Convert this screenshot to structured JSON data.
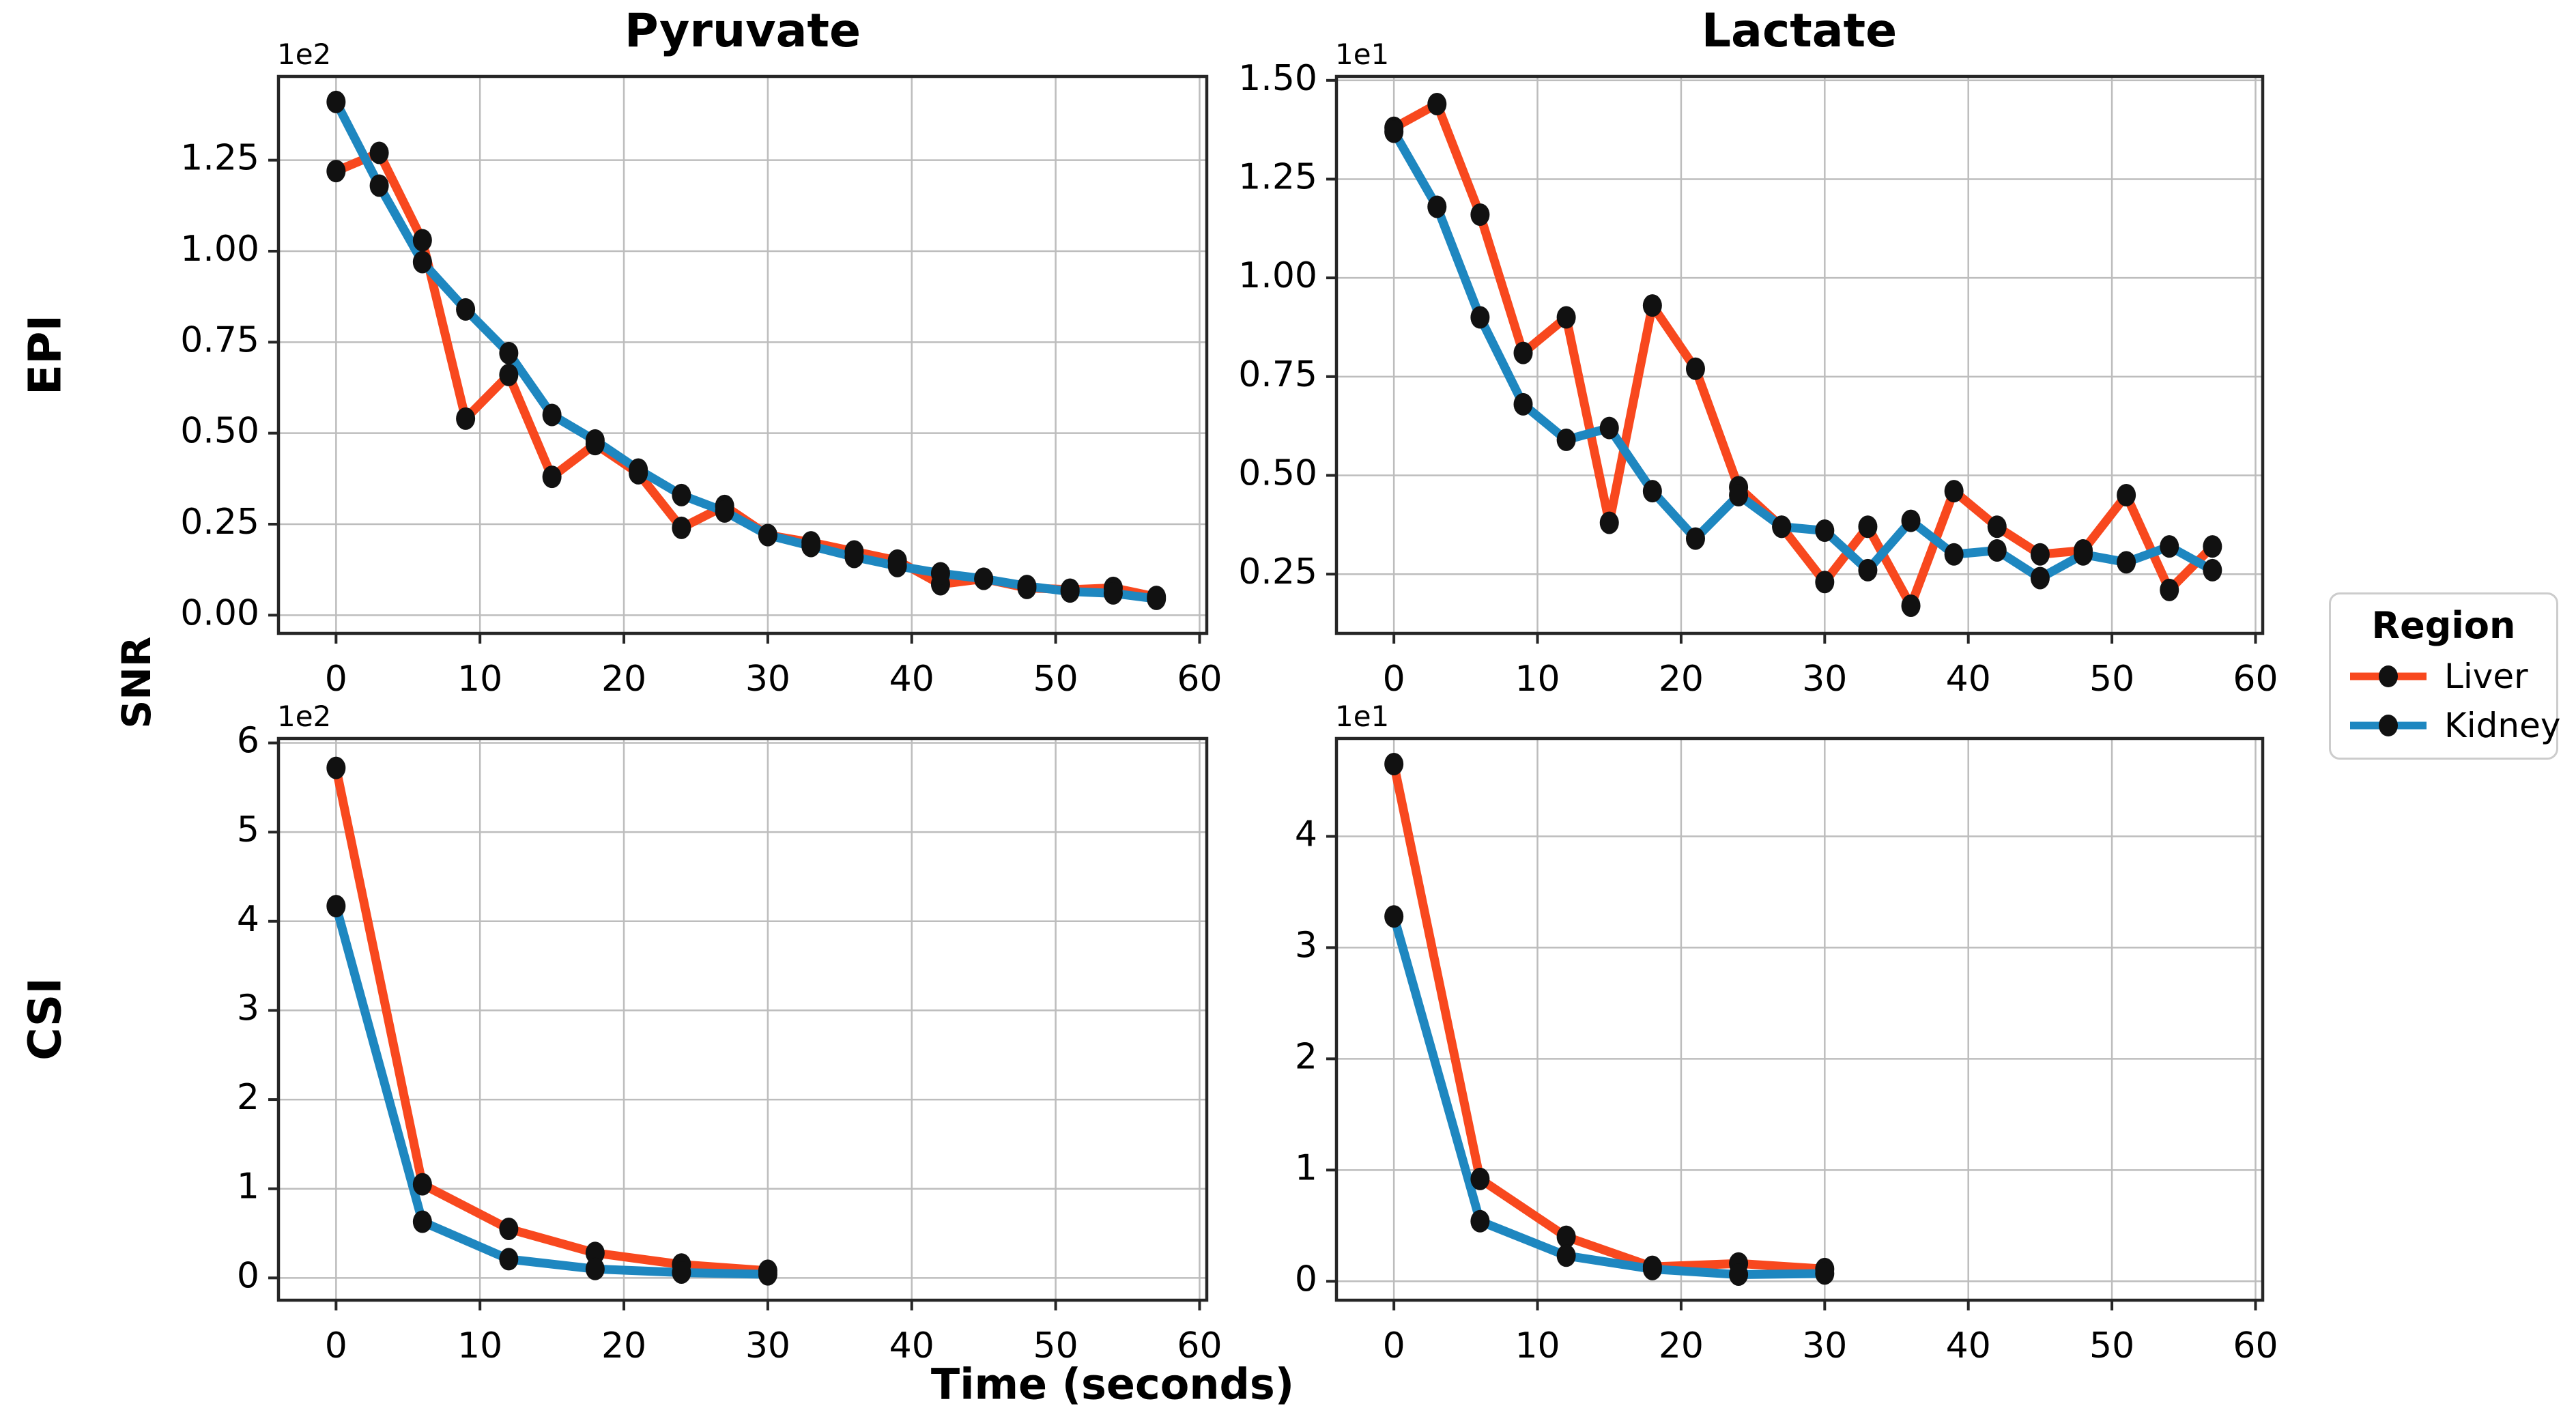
{
  "figure": {
    "column_titles": {
      "left": "Pyruvate",
      "right": "Lactate"
    },
    "row_labels": {
      "top": "EPI",
      "bottom": "CSI"
    },
    "y_axis_label": "SNR",
    "x_axis_label": "Time (seconds)"
  },
  "legend": {
    "title": "Region",
    "entries": [
      {
        "label": "Liver",
        "color": "#F8481E",
        "marker_color": "#111111"
      },
      {
        "label": "Kidney",
        "color": "#1E87C0",
        "marker_color": "#111111"
      }
    ]
  },
  "style": {
    "grid_color": "#bdbdbd",
    "spine_color": "#262626",
    "tick_label_color": "#000000"
  },
  "chart_data": [
    {
      "id": "epi_pyruvate",
      "type": "line",
      "row": "EPI",
      "column": "Pyruvate",
      "y_offset_text": "1e2",
      "x": [
        0,
        3,
        6,
        9,
        12,
        15,
        18,
        21,
        24,
        27,
        30,
        33,
        36,
        39,
        42,
        45,
        48,
        51,
        54,
        57
      ],
      "series": [
        {
          "name": "Liver",
          "color": "#F8481E",
          "values": [
            1.22,
            1.27,
            1.03,
            0.54,
            0.66,
            0.38,
            0.47,
            0.39,
            0.24,
            0.3,
            0.22,
            0.2,
            0.175,
            0.15,
            0.085,
            0.1,
            0.075,
            0.07,
            0.075,
            0.05
          ]
        },
        {
          "name": "Kidney",
          "color": "#1E87C0",
          "values": [
            1.41,
            1.18,
            0.97,
            0.84,
            0.72,
            0.55,
            0.48,
            0.4,
            0.33,
            0.285,
            0.22,
            0.19,
            0.16,
            0.135,
            0.115,
            0.1,
            0.08,
            0.065,
            0.06,
            0.045
          ]
        }
      ],
      "xlim": [
        -4,
        60.5
      ],
      "ylim": [
        -0.05,
        1.48
      ],
      "xticks": [
        0,
        10,
        20,
        30,
        40,
        50,
        60
      ],
      "yticks": [
        0,
        0.25,
        0.5,
        0.75,
        1.0,
        1.25
      ],
      "ytick_labels": [
        "0.00",
        "0.25",
        "0.50",
        "0.75",
        "1.00",
        "1.25"
      ],
      "grid": true
    },
    {
      "id": "epi_lactate",
      "type": "line",
      "row": "EPI",
      "column": "Lactate",
      "y_offset_text": "1e1",
      "x": [
        0,
        3,
        6,
        9,
        12,
        15,
        18,
        21,
        24,
        27,
        30,
        33,
        36,
        39,
        42,
        45,
        48,
        51,
        54,
        57
      ],
      "series": [
        {
          "name": "Liver",
          "color": "#F8481E",
          "values": [
            1.38,
            1.44,
            1.16,
            0.81,
            0.9,
            0.38,
            0.93,
            0.77,
            0.47,
            0.37,
            0.23,
            0.37,
            0.17,
            0.46,
            0.37,
            0.3,
            0.31,
            0.45,
            0.21,
            0.32
          ]
        },
        {
          "name": "Kidney",
          "color": "#1E87C0",
          "values": [
            1.37,
            1.18,
            0.9,
            0.68,
            0.59,
            0.62,
            0.46,
            0.34,
            0.45,
            0.37,
            0.36,
            0.26,
            0.385,
            0.3,
            0.31,
            0.24,
            0.3,
            0.28,
            0.32,
            0.26
          ]
        }
      ],
      "xlim": [
        -4,
        60.5
      ],
      "ylim": [
        0.1,
        1.51
      ],
      "xticks": [
        0,
        10,
        20,
        30,
        40,
        50,
        60
      ],
      "yticks": [
        0.25,
        0.5,
        0.75,
        1.0,
        1.25,
        1.5
      ],
      "ytick_labels": [
        "0.25",
        "0.50",
        "0.75",
        "1.00",
        "1.25",
        "1.50"
      ],
      "grid": true
    },
    {
      "id": "csi_pyruvate",
      "type": "line",
      "row": "CSI",
      "column": "Pyruvate",
      "y_offset_text": "1e2",
      "x": [
        0,
        6,
        12,
        18,
        24,
        30
      ],
      "series": [
        {
          "name": "Liver",
          "color": "#F8481E",
          "values": [
            5.72,
            1.05,
            0.55,
            0.28,
            0.15,
            0.08
          ]
        },
        {
          "name": "Kidney",
          "color": "#1E87C0",
          "values": [
            4.17,
            0.63,
            0.21,
            0.1,
            0.06,
            0.04
          ]
        }
      ],
      "xlim": [
        -4,
        60.5
      ],
      "ylim": [
        -0.25,
        6.05
      ],
      "xticks": [
        0,
        10,
        20,
        30,
        40,
        50,
        60
      ],
      "yticks": [
        0,
        1,
        2,
        3,
        4,
        5,
        6
      ],
      "ytick_labels": [
        "0",
        "1",
        "2",
        "3",
        "4",
        "5",
        "6"
      ],
      "grid": true
    },
    {
      "id": "csi_lactate",
      "type": "line",
      "row": "CSI",
      "column": "Lactate",
      "y_offset_text": "1e1",
      "x": [
        0,
        6,
        12,
        18,
        24,
        30
      ],
      "series": [
        {
          "name": "Liver",
          "color": "#F8481E",
          "values": [
            4.65,
            0.92,
            0.4,
            0.13,
            0.16,
            0.11
          ]
        },
        {
          "name": "Kidney",
          "color": "#1E87C0",
          "values": [
            3.28,
            0.54,
            0.23,
            0.11,
            0.06,
            0.07
          ]
        }
      ],
      "xlim": [
        -4,
        60.5
      ],
      "ylim": [
        -0.17,
        4.88
      ],
      "xticks": [
        0,
        10,
        20,
        30,
        40,
        50,
        60
      ],
      "yticks": [
        0,
        1,
        2,
        3,
        4
      ],
      "ytick_labels": [
        "0",
        "1",
        "2",
        "3",
        "4"
      ],
      "grid": true
    }
  ]
}
